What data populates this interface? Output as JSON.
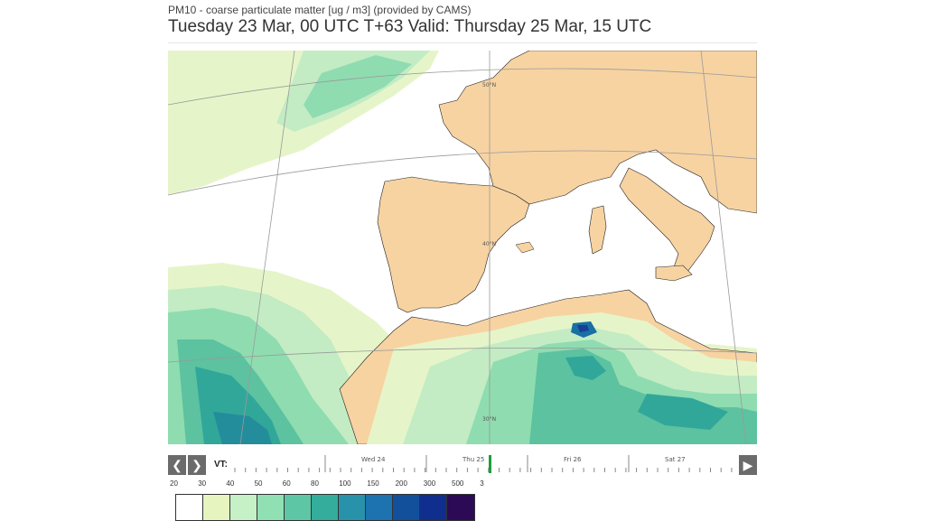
{
  "header": {
    "subtitle": "PM10 - coarse particulate matter [ug / m3] (provided by CAMS)",
    "title": "Tuesday 23 Mar, 00 UTC T+63 Valid: Thursday 25 Mar, 15 UTC"
  },
  "map": {
    "lat_labels": [
      "50°N",
      "40°N",
      "30°N"
    ],
    "colors": {
      "land": "#f7d3a2",
      "sea": "#ffffff",
      "lvl1": "#e6f5c9",
      "lvl2": "#c3ecc4",
      "lvl3": "#8fdcb0",
      "lvl4": "#5cc2a0",
      "lvl5": "#31a79a",
      "lvl6": "#238d9b",
      "lvl7": "#1a6fa3",
      "lvl8": "#1a3f96"
    }
  },
  "timeline": {
    "prev_icon": "chevron-left-icon",
    "next_icon": "chevron-right-icon",
    "play_icon": "play-icon",
    "prev_glyph": "❮",
    "next_glyph": "❯",
    "play_glyph": "▶",
    "vt_label": "VT:",
    "days": [
      "Wed 24",
      "Thu 25",
      "Fri 26",
      "Sat 27"
    ],
    "current": "Thu 25",
    "marker_color": "#1e9e3a"
  },
  "legend": {
    "labels": [
      "20",
      "30",
      "40",
      "50",
      "60",
      "80",
      "100",
      "150",
      "200",
      "300",
      "500",
      "3"
    ],
    "colors": [
      "#ffffff",
      "#e6f5c0",
      "#c6f0c6",
      "#91e0b4",
      "#5dc7a5",
      "#34ad9c",
      "#2892ab",
      "#1c73b0",
      "#12509b",
      "#0f2e8e",
      "#2c0a55"
    ]
  }
}
